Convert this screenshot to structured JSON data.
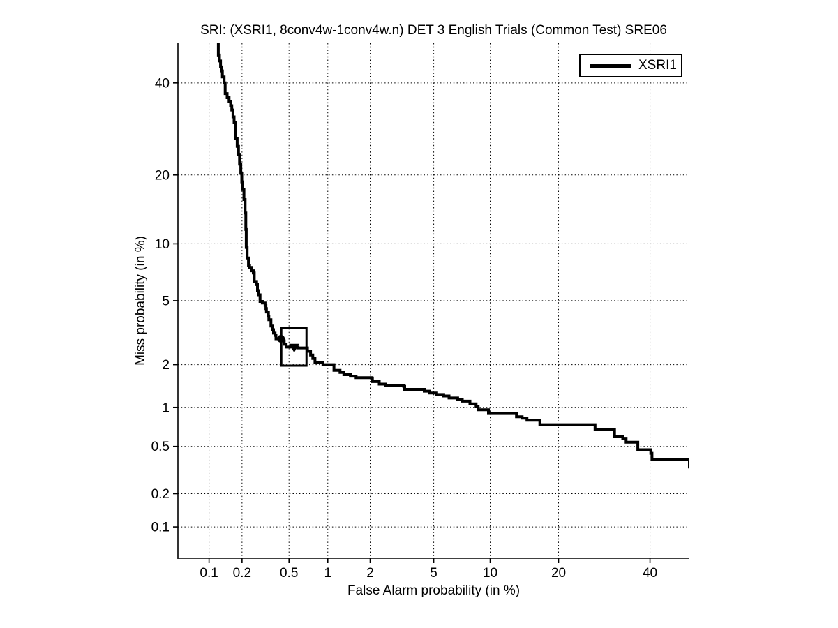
{
  "figure": {
    "background": "#ffffff"
  },
  "chart_data": {
    "type": "line",
    "subtype": "DET-curve",
    "title": "SRI: (XSRI1, 8conv4w-1conv4w.n) DET 3 English Trials (Common Test) SRE06",
    "xlabel": "False Alarm probability (in %)",
    "ylabel": "Miss probability (in %)",
    "axis_scale": "probit (normal deviate) on both axes",
    "xlim_pct": [
      0.05,
      50
    ],
    "ylim_pct": [
      0.05,
      50
    ],
    "x_ticks_pct": [
      0.1,
      0.2,
      0.5,
      1,
      2,
      5,
      10,
      20,
      40
    ],
    "x_tick_labels": [
      "0.1",
      "0.2",
      "0.5",
      "1",
      "2",
      "5",
      "10",
      "20",
      "40"
    ],
    "y_ticks_pct": [
      0.1,
      0.2,
      0.5,
      1,
      2,
      5,
      10,
      20,
      40
    ],
    "y_tick_labels": [
      "0.1",
      "0.2",
      "0.5",
      "1",
      "2",
      "5",
      "10",
      "20",
      "40"
    ],
    "grid": {
      "style": "dotted",
      "color": "#000000"
    },
    "axis_color": "#000000",
    "legend": {
      "position": "top-right",
      "entries": [
        {
          "label": "XSRI1",
          "line_color": "#000000"
        }
      ]
    },
    "series": [
      {
        "name": "XSRI1",
        "color": "#000000",
        "line_width": 4,
        "points_fa_miss_pct": [
          [
            0.117,
            52
          ],
          [
            0.122,
            47
          ],
          [
            0.125,
            45.5
          ],
          [
            0.128,
            44
          ],
          [
            0.13,
            43
          ],
          [
            0.133,
            41.5
          ],
          [
            0.138,
            40
          ],
          [
            0.141,
            37.4
          ],
          [
            0.147,
            36.4
          ],
          [
            0.153,
            35.5
          ],
          [
            0.158,
            34.5
          ],
          [
            0.162,
            33.5
          ],
          [
            0.166,
            31.9
          ],
          [
            0.17,
            30.6
          ],
          [
            0.174,
            29.5
          ],
          [
            0.176,
            27.2
          ],
          [
            0.181,
            25.5
          ],
          [
            0.186,
            23.9
          ],
          [
            0.19,
            22.0
          ],
          [
            0.195,
            20.3
          ],
          [
            0.199,
            18.8
          ],
          [
            0.203,
            17.5
          ],
          [
            0.208,
            15.9
          ],
          [
            0.213,
            13.9
          ],
          [
            0.216,
            11.7
          ],
          [
            0.218,
            9.6
          ],
          [
            0.222,
            8.5
          ],
          [
            0.228,
            7.8
          ],
          [
            0.233,
            7.6
          ],
          [
            0.244,
            7.3
          ],
          [
            0.251,
            7.1
          ],
          [
            0.256,
            6.4
          ],
          [
            0.268,
            6.15
          ],
          [
            0.273,
            5.7
          ],
          [
            0.278,
            5.4
          ],
          [
            0.287,
            4.95
          ],
          [
            0.3,
            4.85
          ],
          [
            0.317,
            4.7
          ],
          [
            0.322,
            4.5
          ],
          [
            0.325,
            4.3
          ],
          [
            0.338,
            4.06
          ],
          [
            0.341,
            3.86
          ],
          [
            0.355,
            3.54
          ],
          [
            0.366,
            3.36
          ],
          [
            0.373,
            3.2
          ],
          [
            0.384,
            3.1
          ],
          [
            0.391,
            2.95
          ],
          [
            0.43,
            2.95
          ],
          [
            0.445,
            2.86
          ],
          [
            0.457,
            2.72
          ],
          [
            0.474,
            2.61
          ],
          [
            0.59,
            2.58
          ],
          [
            0.7,
            2.45
          ],
          [
            0.74,
            2.32
          ],
          [
            0.77,
            2.2
          ],
          [
            0.8,
            2.08
          ],
          [
            0.92,
            2.0
          ],
          [
            1.11,
            1.83
          ],
          [
            1.23,
            1.77
          ],
          [
            1.31,
            1.71
          ],
          [
            1.46,
            1.67
          ],
          [
            1.6,
            1.63
          ],
          [
            2.04,
            1.62
          ],
          [
            2.07,
            1.53
          ],
          [
            2.3,
            1.47
          ],
          [
            2.52,
            1.43
          ],
          [
            3.3,
            1.42
          ],
          [
            3.35,
            1.35
          ],
          [
            4.4,
            1.31
          ],
          [
            4.7,
            1.27
          ],
          [
            5.2,
            1.24
          ],
          [
            5.7,
            1.21
          ],
          [
            6.1,
            1.17
          ],
          [
            6.8,
            1.14
          ],
          [
            7.2,
            1.11
          ],
          [
            7.9,
            1.06
          ],
          [
            8.5,
            1.01
          ],
          [
            8.7,
            0.96
          ],
          [
            9.8,
            0.9
          ],
          [
            13.1,
            0.9
          ],
          [
            13.3,
            0.85
          ],
          [
            14.1,
            0.83
          ],
          [
            14.8,
            0.8
          ],
          [
            16.8,
            0.74
          ],
          [
            26.9,
            0.74
          ],
          [
            27.2,
            0.68
          ],
          [
            31.2,
            0.68
          ],
          [
            31.5,
            0.6
          ],
          [
            33.4,
            0.58
          ],
          [
            34.2,
            0.54
          ],
          [
            36.8,
            0.54
          ],
          [
            37.0,
            0.47
          ],
          [
            40.2,
            0.44
          ],
          [
            40.5,
            0.39
          ],
          [
            49.5,
            0.39
          ],
          [
            50,
            0.33
          ]
        ]
      }
    ],
    "markers": [
      {
        "shape": "filled-circle",
        "fa_pct": 0.43,
        "miss_pct": 2.95
      },
      {
        "shape": "filled-triangle-down",
        "fa_pct": 0.55,
        "miss_pct": 2.6
      }
    ],
    "highlight_box": {
      "fa_min_pct": 0.433,
      "fa_max_pct": 0.688,
      "miss_min_pct": 1.97,
      "miss_max_pct": 3.43
    }
  }
}
